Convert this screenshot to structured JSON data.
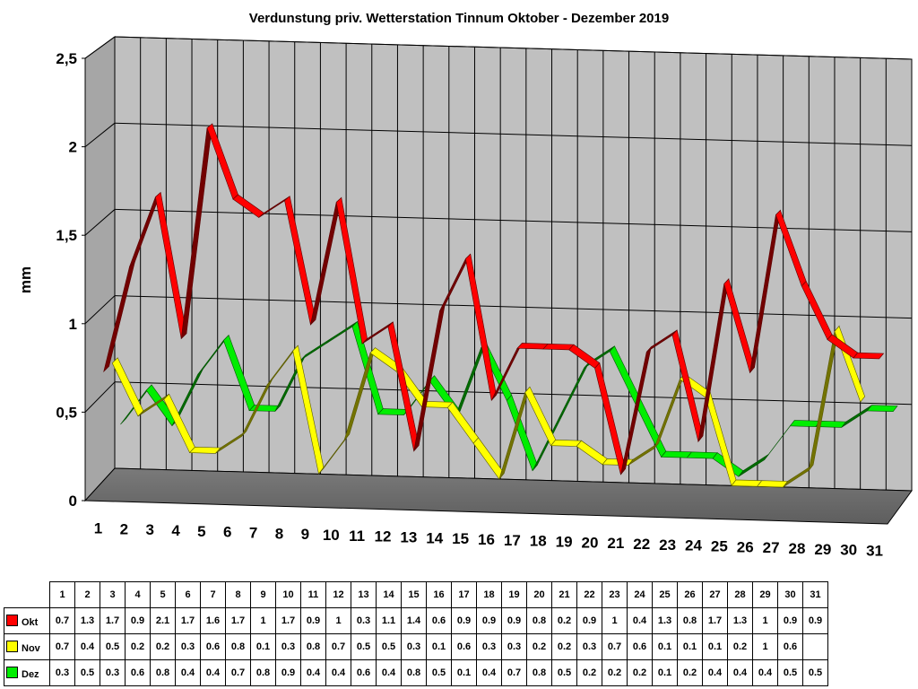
{
  "chart_data": {
    "type": "line",
    "title": "Verdunstung priv. Wetterstation Tinnum Oktober - Dezember 2019",
    "ylabel": "mm",
    "xlabel": "",
    "ylim": [
      0,
      2.5
    ],
    "yticks": [
      "0",
      "0,5",
      "1",
      "1,5",
      "2",
      "2,5"
    ],
    "categories": [
      "1",
      "2",
      "3",
      "4",
      "5",
      "6",
      "7",
      "8",
      "9",
      "10",
      "11",
      "12",
      "13",
      "14",
      "15",
      "16",
      "17",
      "18",
      "19",
      "20",
      "21",
      "22",
      "23",
      "24",
      "25",
      "26",
      "27",
      "28",
      "29",
      "30",
      "31"
    ],
    "grid": true,
    "legend": "table-below",
    "series": [
      {
        "name": "Okt",
        "color": "#ff0000",
        "values": [
          0.7,
          1.3,
          1.7,
          0.9,
          2.1,
          1.7,
          1.6,
          1.7,
          1,
          1.7,
          0.9,
          1,
          0.3,
          1.1,
          1.4,
          0.6,
          0.9,
          0.9,
          0.9,
          0.8,
          0.2,
          0.9,
          1,
          0.4,
          1.3,
          0.8,
          1.7,
          1.3,
          1,
          0.9,
          0.9
        ],
        "labels": [
          "0.7",
          "1.3",
          "1.7",
          "0.9",
          "2.1",
          "1.7",
          "1.6",
          "1.7",
          "1",
          "1.7",
          "0.9",
          "1",
          "0.3",
          "1.1",
          "1.4",
          "0.6",
          "0.9",
          "0.9",
          "0.9",
          "0.8",
          "0.2",
          "0.9",
          "1",
          "0.4",
          "1.3",
          "0.8",
          "1.7",
          "1.3",
          "1",
          "0.9",
          "0.9"
        ]
      },
      {
        "name": "Nov",
        "color": "#ffff00",
        "values": [
          0.7,
          0.4,
          0.5,
          0.2,
          0.2,
          0.3,
          0.6,
          0.8,
          0.1,
          0.3,
          0.8,
          0.7,
          0.5,
          0.5,
          0.3,
          0.1,
          0.6,
          0.3,
          0.3,
          0.2,
          0.2,
          0.3,
          0.7,
          0.6,
          0.1,
          0.1,
          0.1,
          0.2,
          1,
          0.6,
          null
        ],
        "labels": [
          "0.7",
          "0.4",
          "0.5",
          "0.2",
          "0.2",
          "0.3",
          "0.6",
          "0.8",
          "0.1",
          "0.3",
          "0.8",
          "0.7",
          "0.5",
          "0.5",
          "0.3",
          "0.1",
          "0.6",
          "0.3",
          "0.3",
          "0.2",
          "0.2",
          "0.3",
          "0.7",
          "0.6",
          "0.1",
          "0.1",
          "0.1",
          "0.2",
          "1",
          "0.6",
          ""
        ]
      },
      {
        "name": "Dez",
        "color": "#00ee00",
        "values": [
          0.3,
          0.5,
          0.3,
          0.6,
          0.8,
          0.4,
          0.4,
          0.7,
          0.8,
          0.9,
          0.4,
          0.4,
          0.6,
          0.4,
          0.8,
          0.5,
          0.1,
          0.4,
          0.7,
          0.8,
          0.5,
          0.2,
          0.2,
          0.2,
          0.1,
          0.2,
          0.4,
          0.4,
          0.4,
          0.5,
          0.5
        ],
        "labels": [
          "0.3",
          "0.5",
          "0.3",
          "0.6",
          "0.8",
          "0.4",
          "0.4",
          "0.7",
          "0.8",
          "0.9",
          "0.4",
          "0.4",
          "0.6",
          "0.4",
          "0.8",
          "0.5",
          "0.1",
          "0.4",
          "0.7",
          "0.8",
          "0.5",
          "0.2",
          "0.2",
          "0.2",
          "0.1",
          "0.2",
          "0.4",
          "0.4",
          "0.4",
          "0.5",
          "0.5"
        ]
      }
    ]
  }
}
